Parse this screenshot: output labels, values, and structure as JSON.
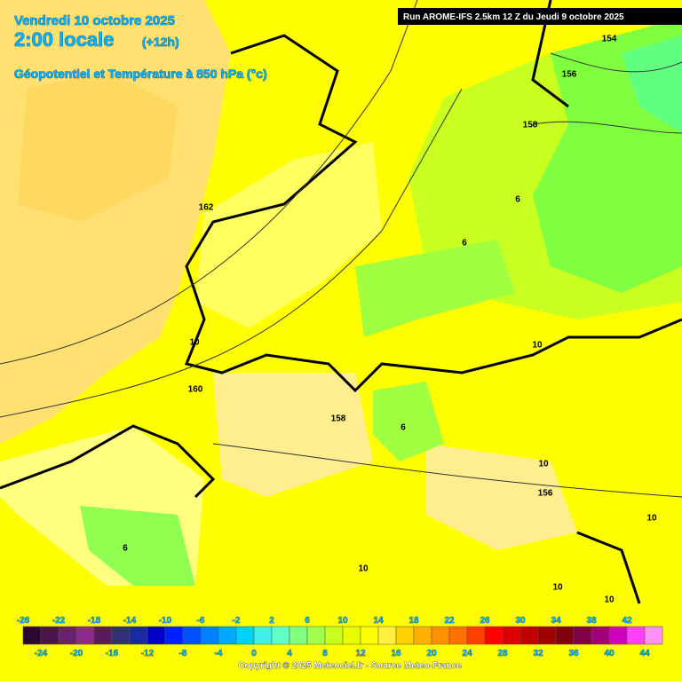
{
  "header": {
    "date": "Vendredi 10 octobre 2025",
    "time": "2:00 locale",
    "lead": "(+12h)",
    "subtitle": "Géopotentiel et Température à 850 hPa (°c)"
  },
  "run": "Run AROME-IFS 2.5km 12 Z du Jeudi 9 octobre 2025",
  "contour_labels": [
    "154",
    "156",
    "158",
    "162",
    "6",
    "6",
    "10",
    "10",
    "160",
    "158",
    "6",
    "10",
    "156",
    "10",
    "6",
    "10",
    "10",
    "10"
  ],
  "colorbar": {
    "top_labels": [
      "-26",
      "-22",
      "-18",
      "-14",
      "-10",
      "-6",
      "-2",
      "2",
      "6",
      "10",
      "14",
      "18",
      "22",
      "26",
      "30",
      "34",
      "38",
      "42"
    ],
    "bottom_labels": [
      "-24",
      "-20",
      "-16",
      "-12",
      "-8",
      "-4",
      "0",
      "4",
      "8",
      "12",
      "16",
      "20",
      "24",
      "28",
      "32",
      "36",
      "40",
      "44"
    ],
    "colors": [
      "#2c0830",
      "#4a1450",
      "#6a2070",
      "#8a2a90",
      "#5a1a60",
      "#30307a",
      "#1a2aa0",
      "#0000c8",
      "#0020ff",
      "#0050ff",
      "#0080ff",
      "#00a8ff",
      "#00d0ff",
      "#40f0f0",
      "#60ffc8",
      "#80ff80",
      "#a0ff50",
      "#c8ff20",
      "#e8ff00",
      "#ffff00",
      "#fff040",
      "#ffd000",
      "#ffb000",
      "#ff9000",
      "#ff7000",
      "#ff4000",
      "#ff0000",
      "#e00000",
      "#c00000",
      "#a00000",
      "#800010",
      "#80004a",
      "#a00080",
      "#d000c0",
      "#ff40ff",
      "#ff90ff"
    ]
  },
  "copyright": "Copyright © 2025 Meteociel.fr - Source Meteo-France"
}
